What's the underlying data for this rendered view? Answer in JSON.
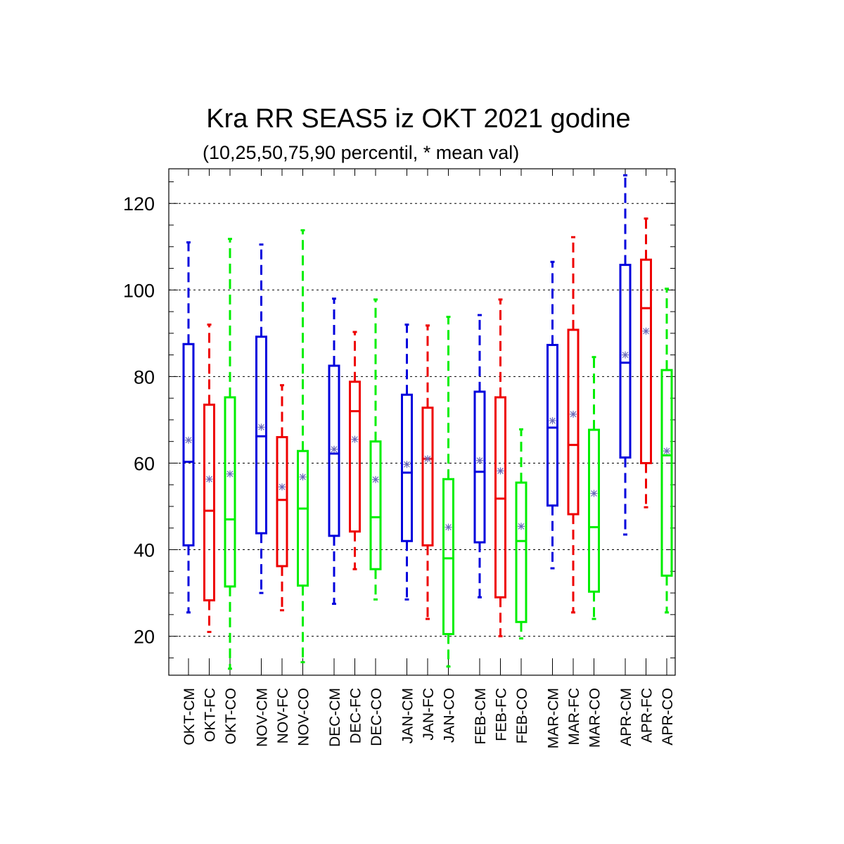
{
  "chart_data": {
    "type": "box",
    "title": "Kra RR SEAS5 iz OKT 2021 godine",
    "subtitle": "(10,25,50,75,90 percentil, * mean val)",
    "xlabel": "",
    "ylabel": "",
    "ylim": [
      11,
      128
    ],
    "yticks": [
      20,
      40,
      60,
      80,
      100,
      120
    ],
    "grid": "horizontal dashed at major ticks",
    "colors": {
      "CM": "#0000dd",
      "FC": "#ee0000",
      "CO": "#00ee00",
      "mean_marker": "#6b6bb8"
    },
    "series_types": [
      "CM",
      "FC",
      "CO"
    ],
    "categories": [
      "OKT-CM",
      "OKT-FC",
      "OKT-CO",
      "NOV-CM",
      "NOV-FC",
      "NOV-CO",
      "DEC-CM",
      "DEC-FC",
      "DEC-CO",
      "JAN-CM",
      "JAN-FC",
      "JAN-CO",
      "FEB-CM",
      "FEB-FC",
      "FEB-CO",
      "MAR-CM",
      "MAR-FC",
      "MAR-CO",
      "APR-CM",
      "APR-FC",
      "APR-CO"
    ],
    "boxes": [
      {
        "label": "OKT-CM",
        "type": "CM",
        "p10": 25.5,
        "p25": 41,
        "p50": 60.3,
        "p75": 87.5,
        "p90": 111,
        "mean": 65.3
      },
      {
        "label": "OKT-FC",
        "type": "FC",
        "p10": 21,
        "p25": 28.3,
        "p50": 49,
        "p75": 73.5,
        "p90": 92,
        "mean": 56.3
      },
      {
        "label": "OKT-CO",
        "type": "CO",
        "p10": 12.5,
        "p25": 31.5,
        "p50": 47,
        "p75": 75.2,
        "p90": 111.8,
        "mean": 57.5
      },
      {
        "label": "NOV-CM",
        "type": "CM",
        "p10": 30,
        "p25": 43.8,
        "p50": 66.2,
        "p75": 89.2,
        "p90": 110.5,
        "mean": 68.3
      },
      {
        "label": "NOV-FC",
        "type": "FC",
        "p10": 26,
        "p25": 36.2,
        "p50": 51.5,
        "p75": 66,
        "p90": 78,
        "mean": 54.5
      },
      {
        "label": "NOV-CO",
        "type": "CO",
        "p10": 14,
        "p25": 31.7,
        "p50": 49.5,
        "p75": 62.8,
        "p90": 113.8,
        "mean": 56.8
      },
      {
        "label": "DEC-CM",
        "type": "CM",
        "p10": 27.5,
        "p25": 43.2,
        "p50": 62.2,
        "p75": 82.5,
        "p90": 98,
        "mean": 63.2
      },
      {
        "label": "DEC-FC",
        "type": "FC",
        "p10": 35.5,
        "p25": 44.2,
        "p50": 72,
        "p75": 78.8,
        "p90": 90.3,
        "mean": 65.5
      },
      {
        "label": "DEC-CO",
        "type": "CO",
        "p10": 28.5,
        "p25": 35.5,
        "p50": 47.5,
        "p75": 65,
        "p90": 97.8,
        "mean": 56.2
      },
      {
        "label": "JAN-CM",
        "type": "CM",
        "p10": 28.5,
        "p25": 42,
        "p50": 57.8,
        "p75": 75.8,
        "p90": 92,
        "mean": 59.7
      },
      {
        "label": "JAN-FC",
        "type": "FC",
        "p10": 24,
        "p25": 41,
        "p50": 61,
        "p75": 72.8,
        "p90": 91.8,
        "mean": 61
      },
      {
        "label": "JAN-CO",
        "type": "CO",
        "p10": 13,
        "p25": 20.5,
        "p50": 38,
        "p75": 56.3,
        "p90": 93.8,
        "mean": 45.2
      },
      {
        "label": "FEB-CM",
        "type": "CM",
        "p10": 29,
        "p25": 41.7,
        "p50": 58,
        "p75": 76.5,
        "p90": 94.2,
        "mean": 60.6
      },
      {
        "label": "FEB-FC",
        "type": "FC",
        "p10": 20,
        "p25": 29,
        "p50": 51.8,
        "p75": 75.2,
        "p90": 97.8,
        "mean": 58.2
      },
      {
        "label": "FEB-CO",
        "type": "CO",
        "p10": 19.5,
        "p25": 23.3,
        "p50": 42,
        "p75": 55.5,
        "p90": 67.8,
        "mean": 45.4
      },
      {
        "label": "MAR-CM",
        "type": "CM",
        "p10": 35.7,
        "p25": 50.2,
        "p50": 68.2,
        "p75": 87.3,
        "p90": 106.5,
        "mean": 69.8
      },
      {
        "label": "MAR-FC",
        "type": "FC",
        "p10": 25.5,
        "p25": 48.2,
        "p50": 64.2,
        "p75": 90.8,
        "p90": 112.2,
        "mean": 71.3
      },
      {
        "label": "MAR-CO",
        "type": "CO",
        "p10": 24,
        "p25": 30.3,
        "p50": 45.2,
        "p75": 67.7,
        "p90": 84.5,
        "mean": 53
      },
      {
        "label": "APR-CM",
        "type": "CM",
        "p10": 43.5,
        "p25": 61.3,
        "p50": 83.2,
        "p75": 105.8,
        "p90": 126.5,
        "mean": 85
      },
      {
        "label": "APR-FC",
        "type": "FC",
        "p10": 49.8,
        "p25": 60,
        "p50": 95.8,
        "p75": 107,
        "p90": 116.5,
        "mean": 90.5
      },
      {
        "label": "APR-CO",
        "type": "CO",
        "p10": 25.5,
        "p25": 34,
        "p50": 61.8,
        "p75": 81.5,
        "p90": 100.3,
        "mean": 62.8
      }
    ]
  }
}
